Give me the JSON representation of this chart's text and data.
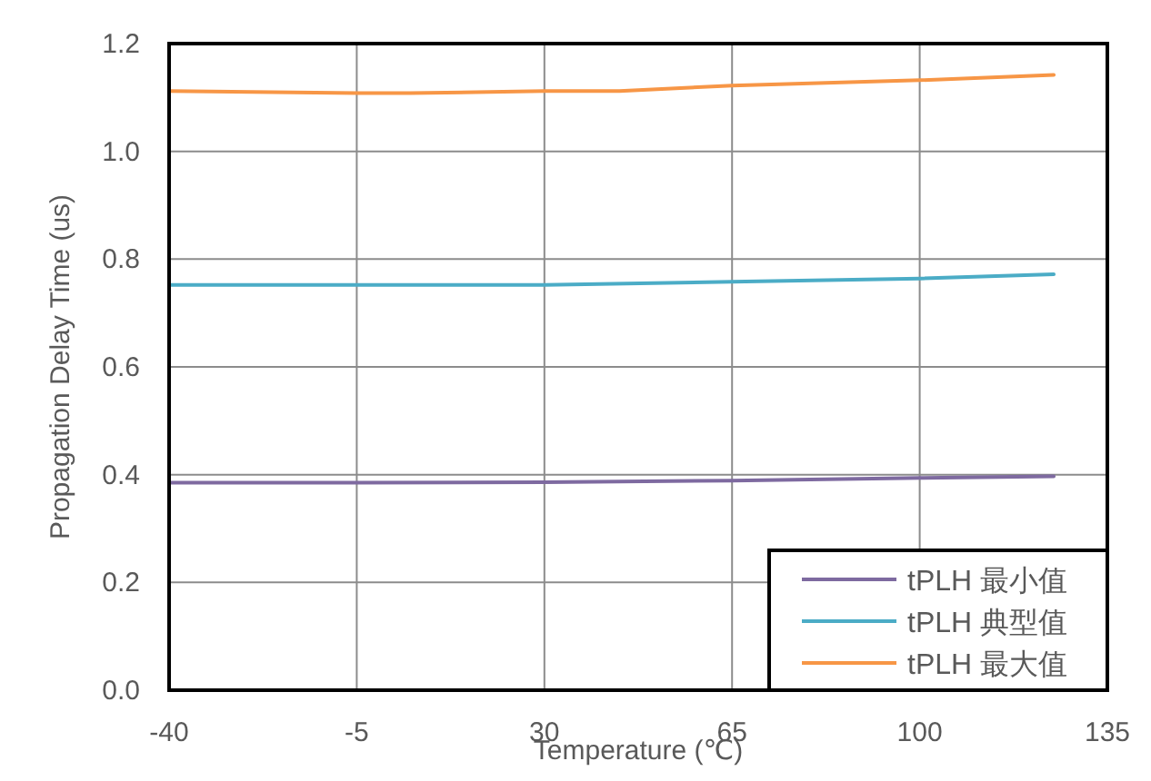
{
  "chart_data": {
    "type": "line",
    "xlabel": "Temperature (℃)",
    "ylabel": "Propagation Delay Time (us)",
    "xlim": [
      -40,
      135
    ],
    "xticks": [
      -40,
      -5,
      30,
      65,
      100,
      135
    ],
    "ylim": [
      0,
      1.2
    ],
    "yticks": [
      {
        "value": 0,
        "label": "0.0"
      },
      {
        "value": 0.2,
        "label": "0.2"
      },
      {
        "value": 0.4,
        "label": "0.4"
      },
      {
        "value": 0.6,
        "label": "0.6"
      },
      {
        "value": 0.8,
        "label": "0.8"
      },
      {
        "value": 1,
        "label": "1.0"
      },
      {
        "value": 1.2,
        "label": "1.2"
      }
    ],
    "grid": true,
    "legend": "bottom right",
    "marker": "none",
    "line_style": "solid",
    "series": [
      {
        "name": "tPLH 最小值",
        "color": "#7e6aa0",
        "x": [
          -40,
          -5,
          30,
          65,
          100,
          125
        ],
        "values": [
          0.385,
          0.385,
          0.386,
          0.389,
          0.394,
          0.397
        ]
      },
      {
        "name": "tPLH 典型值",
        "color": "#4bacc6",
        "x": [
          -40,
          -5,
          30,
          65,
          100,
          125
        ],
        "values": [
          0.752,
          0.752,
          0.752,
          0.758,
          0.764,
          0.772
        ]
      },
      {
        "name": "tPLH 最大值",
        "color": "#f79646",
        "x": [
          -40,
          -5,
          5,
          30,
          44,
          65,
          100,
          125
        ],
        "values": [
          1.112,
          1.108,
          1.108,
          1.112,
          1.112,
          1.122,
          1.132,
          1.142
        ]
      }
    ]
  }
}
